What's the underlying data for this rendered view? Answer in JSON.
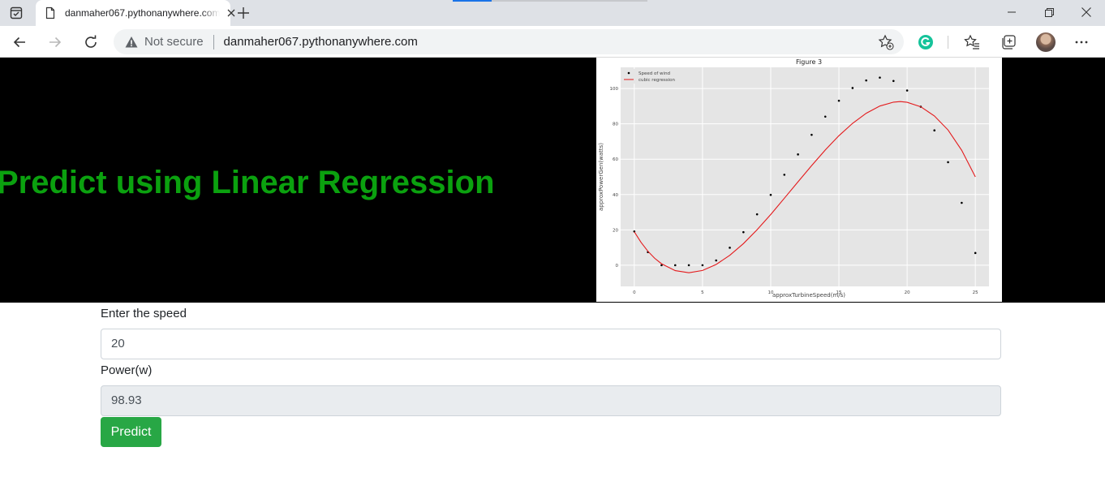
{
  "browser": {
    "tab_title": "danmaher067.pythonanywhere.com",
    "security_label": "Not secure",
    "url": "danmaher067.pythonanywhere.com"
  },
  "page": {
    "heading": "Predict using Linear Regression",
    "form": {
      "speed_label": "Enter the speed",
      "speed_value": "20",
      "power_label": "Power(w)",
      "power_value": "98.93",
      "predict_label": "Predict"
    }
  },
  "colors": {
    "heading": "#0ba10f",
    "button": "#28a745",
    "regression_line": "#e41a1c"
  },
  "icons": [
    "tab-actions-icon",
    "page-icon",
    "close-icon",
    "plus-icon",
    "minimize-icon",
    "restore-icon",
    "window-close-icon",
    "back-arrow-icon",
    "forward-arrow-icon",
    "refresh-icon",
    "warning-icon",
    "add-favorite-icon",
    "grammarly-icon",
    "favorites-icon",
    "collections-icon",
    "more-icon"
  ],
  "chart_data": {
    "type": "scatter",
    "title": "Figure 3",
    "xlabel": "approxTurbineSpeed(m/s)",
    "ylabel": "approxPowerGen(watts)",
    "xlim": [
      -1,
      26
    ],
    "ylim": [
      -12,
      112
    ],
    "x_ticks": [
      0,
      5,
      10,
      15,
      20,
      25
    ],
    "y_ticks": [
      0,
      20,
      40,
      60,
      80,
      100
    ],
    "grid": true,
    "legend_position": "top-left",
    "series": [
      {
        "name": "Speed of wind",
        "kind": "scatter",
        "color": "#000000"
      },
      {
        "name": "cubic regression",
        "kind": "line",
        "color": "#e41a1c"
      }
    ],
    "regression_points": [
      [
        0,
        19.1
      ],
      [
        1,
        7.4
      ],
      [
        2,
        -0.4
      ],
      [
        3,
        -4.3
      ],
      [
        4,
        -4.8
      ],
      [
        5,
        -2.3
      ],
      [
        6,
        2.7
      ],
      [
        7,
        9.9
      ],
      [
        8,
        18.7
      ],
      [
        9,
        28.8
      ],
      [
        10,
        39.8
      ],
      [
        11,
        51.2
      ],
      [
        12,
        62.7
      ],
      [
        13,
        73.8
      ],
      [
        14,
        84.1
      ],
      [
        15,
        93.1
      ],
      [
        16,
        100.3
      ],
      [
        17,
        104.6
      ],
      [
        18,
        106.2
      ],
      [
        19,
        104.3
      ],
      [
        20,
        98.9
      ],
      [
        21,
        89.7
      ],
      [
        22,
        76.3
      ],
      [
        23,
        58.3
      ],
      [
        24,
        35.3
      ],
      [
        25,
        6.9
      ]
    ],
    "fit_curve": [
      [
        0,
        18.9
      ],
      [
        0.5,
        12.9
      ],
      [
        1,
        7.9
      ],
      [
        1.5,
        3.9
      ],
      [
        2,
        0.8
      ],
      [
        3,
        -3.1
      ],
      [
        4,
        -4.3
      ],
      [
        5,
        -3.0
      ],
      [
        6,
        0.4
      ],
      [
        7,
        5.6
      ],
      [
        8,
        12.2
      ],
      [
        9,
        20.0
      ],
      [
        10,
        28.7
      ],
      [
        11,
        37.9
      ],
      [
        12,
        47.2
      ],
      [
        13,
        56.4
      ],
      [
        14,
        65.2
      ],
      [
        15,
        73.3
      ],
      [
        16,
        80.3
      ],
      [
        17,
        86.0
      ],
      [
        18,
        90.1
      ],
      [
        19,
        92.3
      ],
      [
        19.5,
        92.6
      ],
      [
        20,
        92.2
      ],
      [
        21,
        89.7
      ],
      [
        22,
        84.5
      ],
      [
        23,
        76.5
      ],
      [
        24,
        65.0
      ],
      [
        25,
        50.0
      ]
    ]
  }
}
